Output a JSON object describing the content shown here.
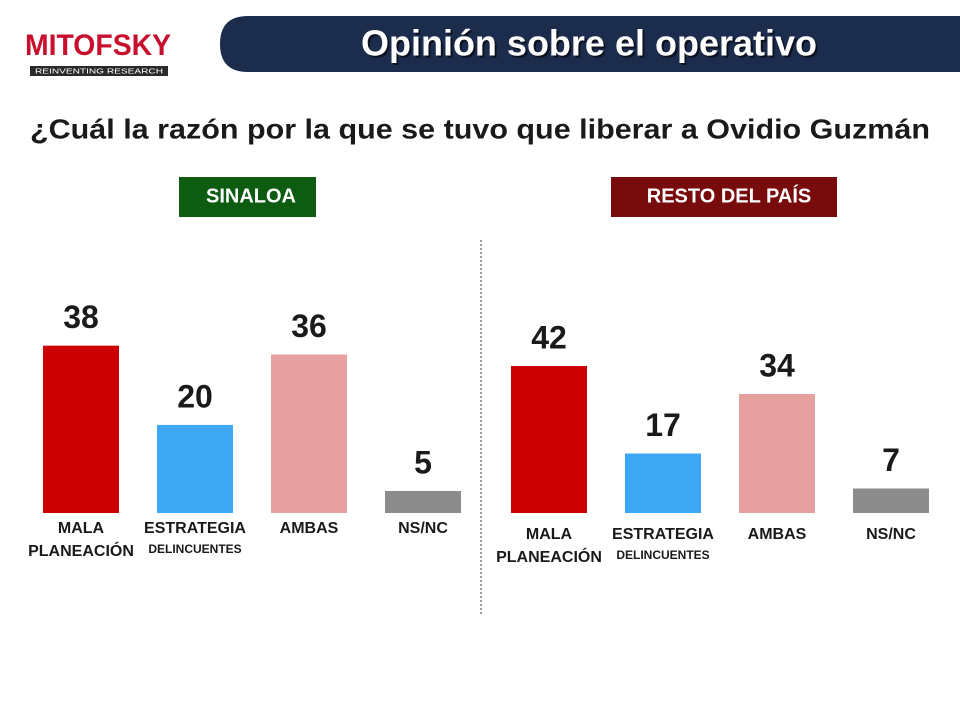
{
  "logo": {
    "name": "MITOFSKY",
    "tagline": "REINVENTING RESEARCH"
  },
  "title": "Opinión sobre el operativo",
  "question": "¿Cuál la razón por la que se tuvo que liberar a Ovidio Guzmán",
  "chart_data": [
    {
      "type": "bar",
      "title": "SINALOA",
      "title_color": "#0d5c12",
      "categories": [
        [
          "MALA",
          "PLANEACIÓN"
        ],
        [
          "ESTRATEGIA",
          "DELINCUENTES"
        ],
        [
          "AMBAS"
        ],
        [
          "NS/NC"
        ]
      ],
      "values": [
        38,
        20,
        36,
        5
      ],
      "colors": [
        "#cc0000",
        "#3ea8f5",
        "#e6a0a0",
        "#8c8c8c"
      ],
      "ylim": [
        0,
        62
      ]
    },
    {
      "type": "bar",
      "title": "RESTO DEL PAÍS",
      "title_color": "#780b0b",
      "categories": [
        [
          "MALA",
          "PLANEACIÓN"
        ],
        [
          "ESTRATEGIA",
          "DELINCUENTES"
        ],
        [
          "AMBAS"
        ],
        [
          "NS/NC"
        ]
      ],
      "values": [
        42,
        17,
        34,
        7
      ],
      "colors": [
        "#cc0000",
        "#3ea8f5",
        "#e6a0a0",
        "#8c8c8c"
      ],
      "ylim": [
        0,
        78
      ]
    }
  ]
}
